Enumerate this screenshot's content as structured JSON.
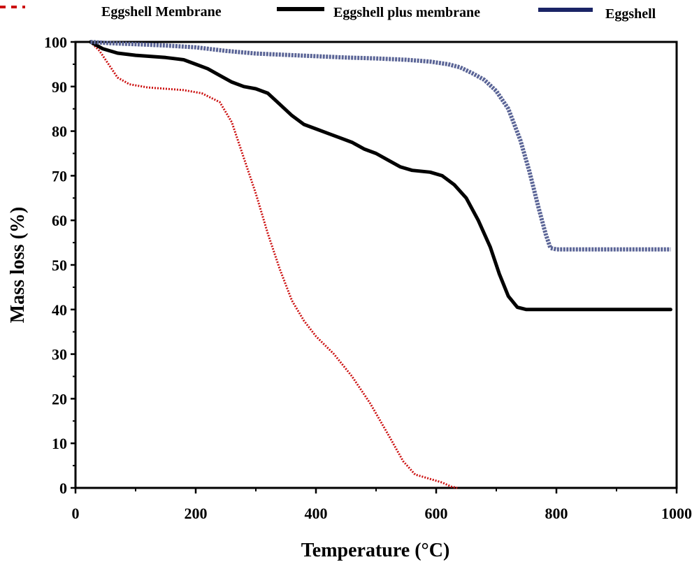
{
  "chart_data": {
    "type": "line",
    "title": "",
    "xlabel": "Temperature (°C)",
    "ylabel": "Mass loss (%)",
    "xlim": [
      0,
      1000
    ],
    "ylim": [
      0,
      100
    ],
    "x_ticks": [
      0,
      200,
      400,
      600,
      800,
      1000
    ],
    "y_ticks": [
      0,
      10,
      20,
      30,
      40,
      50,
      60,
      70,
      80,
      90,
      100
    ],
    "x_tick_labels": [
      "0",
      "200",
      "400",
      "600",
      "800",
      "1000"
    ],
    "y_tick_labels": [
      "0",
      "10",
      "20",
      "30",
      "40",
      "50",
      "60",
      "70",
      "80",
      "90",
      "100"
    ],
    "grid": false,
    "legend_position": "top",
    "series": [
      {
        "name": "Eggshell Membrane",
        "color": "#cc1111",
        "style": "dotted",
        "points": [
          [
            25,
            100
          ],
          [
            40,
            98
          ],
          [
            55,
            95
          ],
          [
            70,
            92
          ],
          [
            90,
            90.5
          ],
          [
            120,
            89.8
          ],
          [
            150,
            89.5
          ],
          [
            180,
            89.2
          ],
          [
            210,
            88.5
          ],
          [
            240,
            86.5
          ],
          [
            260,
            82
          ],
          [
            280,
            74
          ],
          [
            300,
            66
          ],
          [
            320,
            57
          ],
          [
            340,
            49
          ],
          [
            360,
            42
          ],
          [
            380,
            37.5
          ],
          [
            400,
            34
          ],
          [
            430,
            30
          ],
          [
            460,
            25
          ],
          [
            490,
            19
          ],
          [
            520,
            12
          ],
          [
            545,
            6
          ],
          [
            565,
            3
          ],
          [
            590,
            2
          ],
          [
            610,
            1.2
          ],
          [
            625,
            0.3
          ],
          [
            635,
            0
          ]
        ]
      },
      {
        "name": "Eggshell plus membrane",
        "color": "#000000",
        "style": "solid",
        "points": [
          [
            25,
            100
          ],
          [
            45,
            98.5
          ],
          [
            70,
            97.5
          ],
          [
            100,
            97
          ],
          [
            150,
            96.5
          ],
          [
            180,
            96
          ],
          [
            200,
            95
          ],
          [
            220,
            94
          ],
          [
            240,
            92.5
          ],
          [
            260,
            91
          ],
          [
            280,
            90
          ],
          [
            300,
            89.5
          ],
          [
            320,
            88.5
          ],
          [
            340,
            86
          ],
          [
            360,
            83.5
          ],
          [
            380,
            81.5
          ],
          [
            400,
            80.5
          ],
          [
            420,
            79.5
          ],
          [
            440,
            78.5
          ],
          [
            460,
            77.5
          ],
          [
            480,
            76
          ],
          [
            500,
            75
          ],
          [
            520,
            73.5
          ],
          [
            540,
            72
          ],
          [
            560,
            71.2
          ],
          [
            590,
            70.8
          ],
          [
            610,
            70
          ],
          [
            630,
            68
          ],
          [
            650,
            65
          ],
          [
            670,
            60
          ],
          [
            690,
            54
          ],
          [
            705,
            48
          ],
          [
            720,
            43
          ],
          [
            735,
            40.5
          ],
          [
            750,
            40
          ],
          [
            780,
            40
          ],
          [
            820,
            40
          ],
          [
            860,
            40
          ],
          [
            900,
            40
          ],
          [
            940,
            40
          ],
          [
            990,
            40
          ]
        ]
      },
      {
        "name": "Eggshell",
        "color": "#5a6496",
        "style": "dashed",
        "points": [
          [
            25,
            100
          ],
          [
            60,
            99.7
          ],
          [
            100,
            99.5
          ],
          [
            150,
            99.2
          ],
          [
            200,
            98.8
          ],
          [
            250,
            98
          ],
          [
            300,
            97.4
          ],
          [
            350,
            97.1
          ],
          [
            400,
            96.8
          ],
          [
            450,
            96.5
          ],
          [
            500,
            96.3
          ],
          [
            550,
            96
          ],
          [
            590,
            95.6
          ],
          [
            620,
            95
          ],
          [
            640,
            94.3
          ],
          [
            660,
            93
          ],
          [
            680,
            91.5
          ],
          [
            700,
            89
          ],
          [
            720,
            85
          ],
          [
            740,
            78
          ],
          [
            755,
            71
          ],
          [
            770,
            63
          ],
          [
            782,
            57
          ],
          [
            790,
            53.8
          ],
          [
            800,
            53.5
          ],
          [
            850,
            53.5
          ],
          [
            900,
            53.5
          ],
          [
            950,
            53.5
          ],
          [
            990,
            53.5
          ]
        ]
      }
    ]
  }
}
